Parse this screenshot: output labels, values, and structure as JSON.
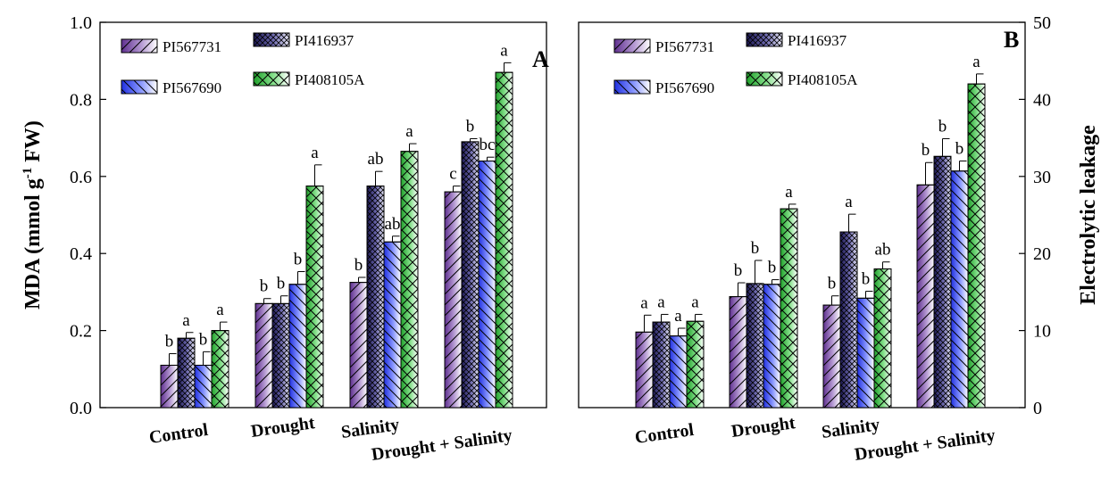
{
  "chart_data": [
    {
      "type": "bar",
      "panel_label": "A",
      "ylabel": "MDA (mmol g-1 FW)",
      "ylabel_parts": {
        "main": "MDA (mmol g",
        "sup": "-1",
        "tail": " FW)"
      },
      "ylim": [
        0,
        1.0
      ],
      "yticks": [
        "0.0",
        "0.2",
        "0.4",
        "0.6",
        "0.8",
        "1.0"
      ],
      "y_axis_side": "left",
      "categories": [
        "Control",
        "Drought",
        "Salinity",
        "Drought + Salinity"
      ],
      "series": [
        {
          "name": "PI567731",
          "values": [
            0.11,
            0.27,
            0.325,
            0.56
          ],
          "errors": [
            0.03,
            0.013,
            0.013,
            0.015
          ],
          "labels": [
            "b",
            "b",
            "b",
            "c"
          ]
        },
        {
          "name": "PI416937",
          "values": [
            0.18,
            0.27,
            0.575,
            0.69
          ],
          "errors": [
            0.015,
            0.02,
            0.038,
            0.008
          ],
          "labels": [
            "a",
            "b",
            "ab",
            "b"
          ]
        },
        {
          "name": "PI567690",
          "values": [
            0.11,
            0.32,
            0.43,
            0.64
          ],
          "errors": [
            0.035,
            0.033,
            0.015,
            0.01
          ],
          "labels": [
            "b",
            "b",
            "ab",
            "bc"
          ]
        },
        {
          "name": "PI408105A",
          "values": [
            0.2,
            0.575,
            0.665,
            0.87
          ],
          "errors": [
            0.022,
            0.055,
            0.02,
            0.025
          ],
          "labels": [
            "a",
            "a",
            "a",
            "a"
          ]
        }
      ],
      "legend": "top-left",
      "grid": false
    },
    {
      "type": "bar",
      "panel_label": "B",
      "ylabel": "Electrolytic leakage",
      "ylim": [
        0,
        50
      ],
      "yticks": [
        "0",
        "10",
        "20",
        "30",
        "40",
        "50"
      ],
      "y_axis_side": "right",
      "categories": [
        "Control",
        "Drought",
        "Salinity",
        "Drought + Salinity"
      ],
      "series": [
        {
          "name": "PI567731",
          "values": [
            9.8,
            14.4,
            13.3,
            28.9
          ],
          "errors": [
            2.2,
            1.8,
            1.2,
            2.9
          ],
          "labels": [
            "a",
            "b",
            "b",
            "b"
          ]
        },
        {
          "name": "PI416937",
          "values": [
            11.1,
            16.1,
            22.8,
            32.6
          ],
          "errors": [
            1.0,
            3.0,
            2.3,
            2.3
          ],
          "labels": [
            "a",
            "b",
            "a",
            "b"
          ]
        },
        {
          "name": "PI567690",
          "values": [
            9.3,
            16.0,
            14.2,
            30.7
          ],
          "errors": [
            1.0,
            0.6,
            0.9,
            1.3
          ],
          "labels": [
            "a",
            "b",
            "b",
            "b"
          ]
        },
        {
          "name": "PI408105A",
          "values": [
            11.2,
            25.8,
            18.0,
            42.0
          ],
          "errors": [
            0.9,
            0.6,
            0.9,
            1.3
          ],
          "labels": [
            "a",
            "a",
            "ab",
            "a"
          ]
        }
      ],
      "legend": "top-left",
      "grid": false
    }
  ],
  "colors": {
    "PI567731": "#8a5fb0",
    "PI416937": "#3d3a8a",
    "PI567690": "#4a5cf0",
    "PI408105A": "#46c84a"
  }
}
